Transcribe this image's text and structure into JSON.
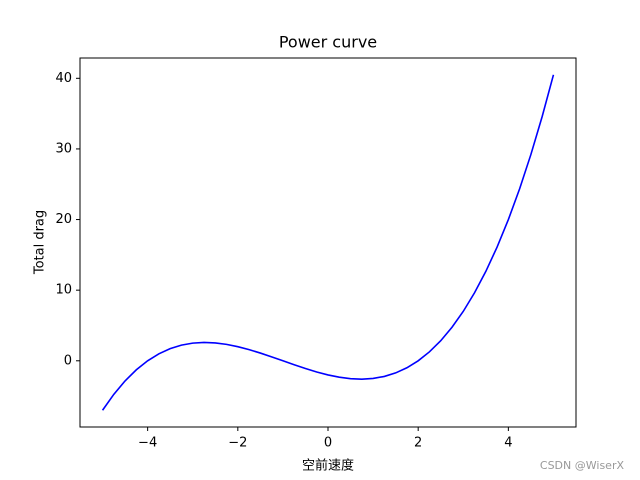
{
  "chart_data": {
    "type": "line",
    "title": "Power curve",
    "x_label": "空前速度",
    "y_label": "Total drag",
    "x": [
      -5,
      -4.75,
      -4.5,
      -4.25,
      -4,
      -3.75,
      -3.5,
      -3.25,
      -3,
      -2.75,
      -2.5,
      -2.25,
      -2,
      -1.75,
      -1.5,
      -1.25,
      -1,
      -0.75,
      -0.5,
      -0.25,
      0,
      0.25,
      0.5,
      0.75,
      1,
      1.25,
      1.5,
      1.75,
      2,
      2.25,
      2.5,
      2.75,
      3,
      3.25,
      3.5,
      3.75,
      4,
      4.25,
      4.5,
      4.75,
      5
    ],
    "series": [
      {
        "name": "Total drag",
        "color": "#0000ff",
        "values": [
          -7,
          -4.746,
          -2.844,
          -1.27,
          0,
          0.988,
          1.719,
          2.215,
          2.5,
          2.598,
          2.531,
          2.324,
          2,
          1.582,
          1.094,
          0.559,
          0,
          -0.559,
          -1.094,
          -1.582,
          -2,
          -2.324,
          -2.531,
          -2.598,
          -2.5,
          -2.215,
          -1.719,
          -0.988,
          0,
          1.27,
          2.844,
          4.746,
          7,
          9.629,
          12.656,
          16.105,
          20,
          24.363,
          29.219,
          34.59,
          40.5
        ]
      }
    ],
    "xlim": [
      -5.5,
      5.5
    ],
    "xticks": [
      {
        "value": -4,
        "label": "−4"
      },
      {
        "value": -2,
        "label": "−2"
      },
      0,
      2,
      4
    ],
    "ylim": [
      -9.375,
      42.875
    ],
    "yticks": [
      0,
      10,
      20,
      30,
      40
    ],
    "grid": false,
    "watermark": "CSDN @WiserX"
  }
}
